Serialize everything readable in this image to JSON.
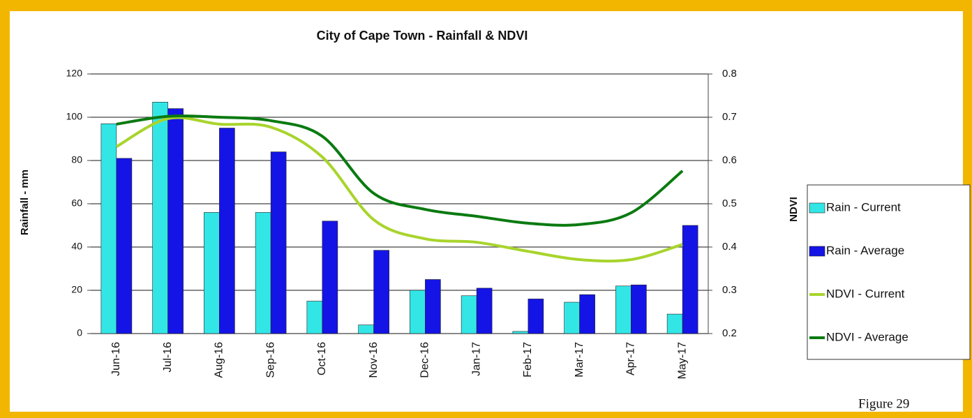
{
  "chart_data": {
    "type": "bar-line",
    "title": "City of Cape Town - Rainfall & NDVI",
    "y_label": "Rainfall - mm",
    "y2_label": "NDVI",
    "caption": "Figure 29",
    "categories": [
      "Jun-16",
      "Jul-16",
      "Aug-16",
      "Sep-16",
      "Oct-16",
      "Nov-16",
      "Dec-16",
      "Jan-17",
      "Feb-17",
      "Mar-17",
      "Apr-17",
      "May-17"
    ],
    "series": [
      {
        "name": "Rain - Current",
        "type": "bar",
        "color": "#33e6e6",
        "values": [
          97,
          107,
          56,
          56,
          15,
          4,
          20,
          17.5,
          1,
          14.5,
          22,
          9
        ]
      },
      {
        "name": "Rain - Average",
        "type": "bar",
        "color": "#1414e6",
        "values": [
          81,
          104,
          95,
          84,
          52,
          38.5,
          25,
          21,
          16,
          18,
          22.5,
          50
        ]
      },
      {
        "name": "NDVI - Current",
        "type": "line",
        "axis": "y2",
        "color": "#a8d42c",
        "values": [
          0.632,
          0.697,
          0.684,
          0.677,
          0.608,
          0.463,
          0.419,
          0.411,
          0.39,
          0.371,
          0.371,
          0.406
        ]
      },
      {
        "name": "NDVI - Average",
        "type": "line",
        "axis": "y2",
        "color": "#0a7a10",
        "values": [
          0.684,
          0.702,
          0.7,
          0.692,
          0.656,
          0.524,
          0.487,
          0.471,
          0.455,
          0.452,
          0.479,
          0.576
        ]
      }
    ],
    "ylim": [
      0,
      120
    ],
    "yticks": [
      0,
      20,
      40,
      60,
      80,
      100,
      120
    ],
    "y2lim": [
      0.2,
      0.8
    ],
    "y2ticks": [
      0.2,
      0.3,
      0.4,
      0.5,
      0.6,
      0.7,
      0.8
    ],
    "grid": true,
    "legend": "right"
  }
}
